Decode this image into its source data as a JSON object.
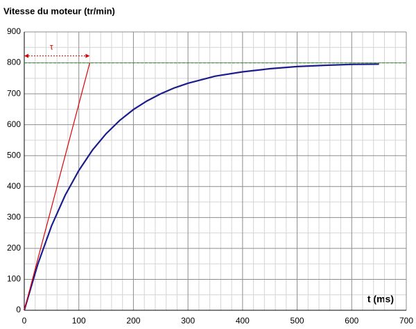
{
  "chart_data": {
    "type": "line",
    "title": "Vitesse du moteur (tr/min)",
    "x_label": "t (ms)",
    "annotation": "τ",
    "xlim": [
      0,
      700
    ],
    "ylim": [
      0,
      900
    ],
    "xticks": [
      0,
      100,
      200,
      300,
      400,
      500,
      600,
      700
    ],
    "yticks": [
      0,
      100,
      200,
      300,
      400,
      500,
      600,
      700,
      800,
      900
    ],
    "minor_xticks": [
      20,
      40,
      60,
      80,
      120,
      140,
      160,
      180,
      220,
      240,
      260,
      280,
      320,
      340,
      360,
      380,
      420,
      440,
      460,
      480,
      520,
      540,
      560,
      580,
      620,
      640,
      660,
      680
    ],
    "minor_yticks": [
      50,
      150,
      250,
      350,
      450,
      550,
      650,
      750,
      850
    ],
    "grid": true,
    "series": [
      {
        "name": "vitesse",
        "color": "#1c1c8c",
        "x": [
          0,
          25,
          50,
          75,
          100,
          125,
          150,
          175,
          200,
          225,
          250,
          275,
          300,
          350,
          400,
          450,
          500,
          550,
          600,
          650
        ],
        "values": [
          0,
          150,
          273,
          372,
          452,
          518,
          571,
          614,
          649,
          677,
          700,
          719,
          734,
          757,
          771,
          781,
          788,
          792,
          795,
          796
        ]
      },
      {
        "name": "tangente",
        "color": "#e00000",
        "x": [
          0,
          120
        ],
        "values": [
          0,
          800
        ]
      },
      {
        "name": "asymptote",
        "color": "#2e8b2e",
        "dashed": true,
        "x": [
          0,
          700
        ],
        "values": [
          800,
          800
        ]
      }
    ]
  }
}
